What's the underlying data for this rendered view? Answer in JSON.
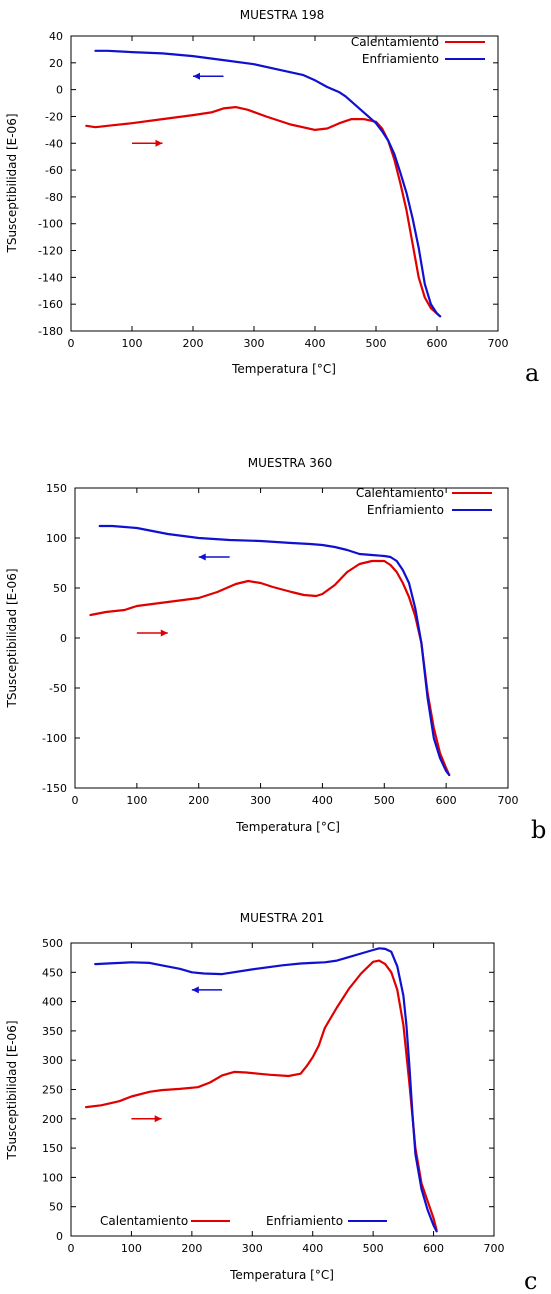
{
  "chart_data": [
    {
      "type": "line",
      "panel_label": "a",
      "title": "MUESTRA 198",
      "xlabel": "Temperatura [°C]",
      "ylabel": "TSusceptibilidad [E-06]",
      "xlim": [
        0,
        700
      ],
      "ylim": [
        -180,
        40
      ],
      "xticks": [
        "0",
        "100",
        "200",
        "300",
        "400",
        "500",
        "600",
        "700"
      ],
      "yticks": [
        "40",
        "20",
        "0",
        "-20",
        "-40",
        "-60",
        "-80",
        "-100",
        "-120",
        "-140",
        "-160",
        "-180"
      ],
      "grid": false,
      "legend_position": "top-right",
      "colors": {
        "heating": "#e00000",
        "cooling": "#1010d0"
      },
      "series": [
        {
          "name": "Calentamiento",
          "x": [
            25,
            40,
            60,
            100,
            150,
            200,
            230,
            250,
            270,
            290,
            320,
            360,
            400,
            420,
            440,
            460,
            480,
            500,
            510,
            520,
            530,
            540,
            550,
            560,
            570,
            580,
            590,
            600,
            605
          ],
          "y": [
            -27,
            -28,
            -27,
            -25,
            -22,
            -19,
            -17,
            -14,
            -13,
            -15,
            -20,
            -26,
            -30,
            -29,
            -25,
            -22,
            -22,
            -24,
            -29,
            -38,
            -52,
            -70,
            -90,
            -115,
            -140,
            -155,
            -163,
            -167,
            -169
          ]
        },
        {
          "name": "Enfriamiento",
          "x": [
            605,
            600,
            590,
            580,
            570,
            560,
            550,
            540,
            530,
            520,
            510,
            500,
            490,
            480,
            470,
            460,
            450,
            440,
            420,
            400,
            380,
            350,
            300,
            250,
            200,
            150,
            100,
            60,
            40
          ],
          "y": [
            -169,
            -167,
            -160,
            -145,
            -118,
            -96,
            -77,
            -62,
            -48,
            -38,
            -31,
            -25,
            -21,
            -17,
            -13,
            -9,
            -5,
            -2,
            2,
            7,
            11,
            14,
            19,
            22,
            25,
            27,
            28,
            29,
            29
          ]
        }
      ],
      "annotations": [
        {
          "type": "arrow",
          "direction": "right",
          "color": "#e00000",
          "x": [
            100,
            150
          ],
          "y": -40
        },
        {
          "type": "arrow",
          "direction": "left",
          "color": "#1010d0",
          "x": [
            250,
            200
          ],
          "y": 10
        }
      ]
    },
    {
      "type": "line",
      "panel_label": "b",
      "title": "MUESTRA 360",
      "xlabel": "Temperatura [°C]",
      "ylabel": "TSusceptibilidad [E-06]",
      "xlim": [
        0,
        700
      ],
      "ylim": [
        -150,
        150
      ],
      "xticks": [
        "0",
        "100",
        "200",
        "300",
        "400",
        "500",
        "600",
        "700"
      ],
      "yticks": [
        "150",
        "100",
        "50",
        "0",
        "-50",
        "-100",
        "-150"
      ],
      "grid": false,
      "legend_position": "top-right",
      "colors": {
        "heating": "#e00000",
        "cooling": "#1010d0"
      },
      "series": [
        {
          "name": "Calentamiento",
          "x": [
            25,
            50,
            80,
            100,
            150,
            200,
            230,
            260,
            280,
            300,
            320,
            350,
            370,
            390,
            400,
            420,
            440,
            460,
            480,
            500,
            510,
            520,
            530,
            540,
            550,
            560,
            570,
            580,
            590,
            600,
            605
          ],
          "y": [
            23,
            26,
            28,
            32,
            36,
            40,
            46,
            54,
            57,
            55,
            51,
            46,
            43,
            42,
            44,
            53,
            66,
            74,
            77,
            77,
            73,
            66,
            55,
            41,
            22,
            -5,
            -55,
            -90,
            -115,
            -130,
            -137
          ]
        },
        {
          "name": "Enfriamiento",
          "x": [
            605,
            600,
            590,
            580,
            570,
            560,
            550,
            540,
            530,
            520,
            510,
            500,
            480,
            460,
            440,
            420,
            400,
            380,
            350,
            300,
            250,
            200,
            150,
            100,
            60,
            40
          ],
          "y": [
            -137,
            -133,
            -120,
            -100,
            -60,
            -5,
            30,
            55,
            68,
            77,
            81,
            82,
            83,
            84,
            88,
            91,
            93,
            94,
            95,
            97,
            98,
            100,
            104,
            110,
            112,
            112
          ]
        }
      ],
      "annotations": [
        {
          "type": "arrow",
          "direction": "right",
          "color": "#e00000",
          "x": [
            100,
            150
          ],
          "y": 5
        },
        {
          "type": "arrow",
          "direction": "left",
          "color": "#1010d0",
          "x": [
            250,
            200
          ],
          "y": 81
        }
      ]
    },
    {
      "type": "line",
      "panel_label": "c",
      "title": "MUESTRA 201",
      "xlabel": "Temperatura [°C]",
      "ylabel": "TSusceptibilidad [E-06]",
      "xlim": [
        0,
        700
      ],
      "ylim": [
        0,
        500
      ],
      "xticks": [
        "0",
        "100",
        "200",
        "300",
        "400",
        "500",
        "600",
        "700"
      ],
      "yticks": [
        "500",
        "450",
        "400",
        "350",
        "300",
        "250",
        "200",
        "150",
        "100",
        "50",
        "0"
      ],
      "grid": false,
      "legend_position": "bottom",
      "colors": {
        "heating": "#e00000",
        "cooling": "#1010d0"
      },
      "series": [
        {
          "name": "Calentamiento",
          "x": [
            25,
            50,
            80,
            100,
            130,
            150,
            180,
            210,
            230,
            250,
            270,
            290,
            310,
            330,
            360,
            380,
            390,
            400,
            410,
            420,
            440,
            460,
            480,
            500,
            510,
            520,
            530,
            540,
            550,
            560,
            570,
            580,
            590,
            600,
            605
          ],
          "y": [
            220,
            223,
            230,
            238,
            246,
            249,
            251,
            254,
            262,
            274,
            280,
            279,
            277,
            275,
            273,
            277,
            290,
            305,
            325,
            355,
            390,
            422,
            448,
            468,
            470,
            464,
            450,
            420,
            360,
            260,
            150,
            90,
            60,
            30,
            10
          ]
        },
        {
          "name": "Enfriamiento",
          "x": [
            605,
            600,
            590,
            580,
            570,
            565,
            560,
            555,
            550,
            540,
            530,
            520,
            510,
            500,
            480,
            460,
            440,
            420,
            400,
            380,
            350,
            300,
            250,
            220,
            200,
            180,
            150,
            130,
            100,
            60,
            40
          ],
          "y": [
            8,
            18,
            45,
            80,
            140,
            210,
            290,
            360,
            410,
            460,
            485,
            490,
            491,
            488,
            482,
            476,
            470,
            467,
            466,
            465,
            462,
            455,
            447,
            448,
            450,
            456,
            462,
            466,
            467,
            465,
            464
          ]
        }
      ],
      "annotations": [
        {
          "type": "arrow",
          "direction": "right",
          "color": "#e00000",
          "x": [
            100,
            150
          ],
          "y": 200
        },
        {
          "type": "arrow",
          "direction": "left",
          "color": "#1010d0",
          "x": [
            250,
            200
          ],
          "y": 420
        }
      ]
    }
  ]
}
